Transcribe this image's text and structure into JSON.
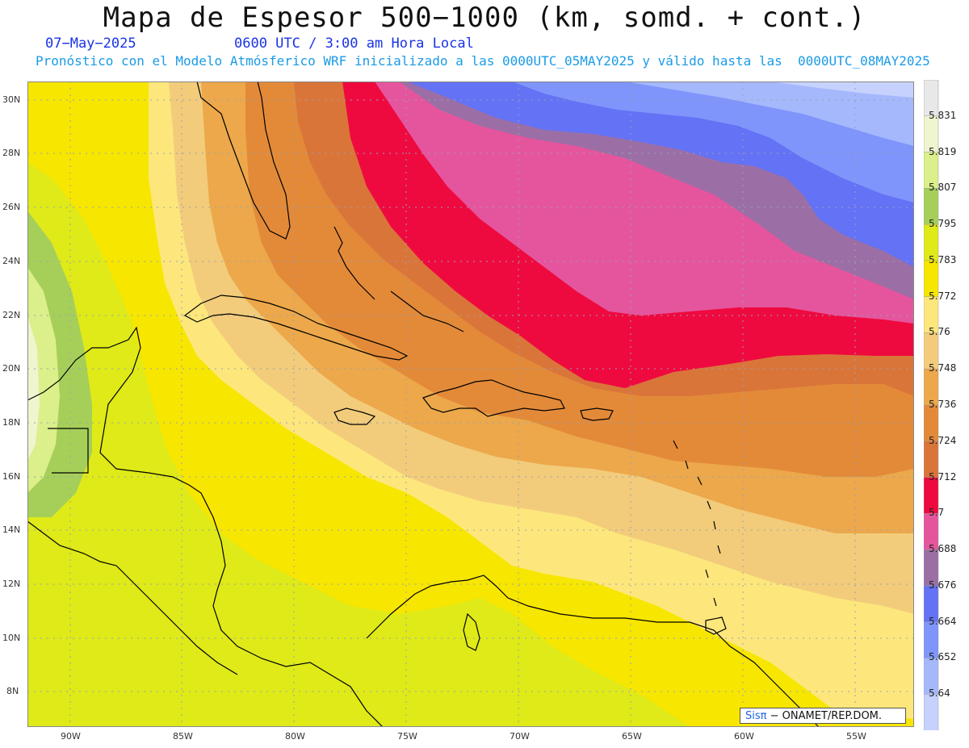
{
  "header": {
    "title": "Mapa de Espesor 500−1000 (km, somd. + cont.)",
    "date": "07−May−2025",
    "time": "0600 UTC / 3:00 am Hora Local",
    "forecast_info": "Pronóstico con el Modelo Atmósferico WRF inicializado a las 0000UTC_05MAY2025 y válido hasta las  0000UTC_08MAY2025"
  },
  "axes": {
    "lat_labels": [
      "30N",
      "28N",
      "26N",
      "24N",
      "22N",
      "20N",
      "18N",
      "16N",
      "14N",
      "12N",
      "10N",
      "8N"
    ],
    "lon_labels": [
      "90W",
      "85W",
      "80W",
      "75W",
      "70W",
      "65W",
      "60W",
      "55W"
    ]
  },
  "colorbar": {
    "labels": [
      "5.831",
      "5.819",
      "5.807",
      "5.795",
      "5.783",
      "5.772",
      "5.76",
      "5.748",
      "5.736",
      "5.724",
      "5.712",
      "5.7",
      "5.688",
      "5.676",
      "5.664",
      "5.652",
      "5.64"
    ],
    "colors": [
      "#e8e8e8",
      "#eef5cf",
      "#dbef8a",
      "#a6cf59",
      "#dfea18",
      "#f7e600",
      "#fde77c",
      "#f2cc7b",
      "#eca84a",
      "#e38a39",
      "#da753a",
      "#ee0a3f",
      "#e5559d",
      "#9b6fa6",
      "#6472f5",
      "#7f95fb",
      "#a5b8fc",
      "#c6d2fd"
    ]
  },
  "credit": {
    "system": "Sisπ",
    "org": "− ONAMET/REP.DOM."
  }
}
